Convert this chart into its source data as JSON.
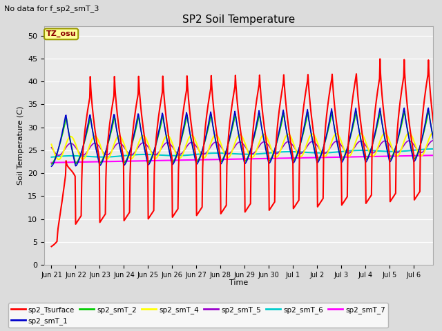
{
  "title": "SP2 Soil Temperature",
  "subtitle": "No data for f_sp2_smT_3",
  "ylabel": "Soil Temperature (C)",
  "xlabel": "Time",
  "timezone_label": "TZ_osu",
  "ylim": [
    0,
    52
  ],
  "yticks": [
    0,
    5,
    10,
    15,
    20,
    25,
    30,
    35,
    40,
    45,
    50
  ],
  "series": {
    "sp2_Tsurface": {
      "color": "#ff0000",
      "lw": 1.5,
      "zorder": 5
    },
    "sp2_smT_1": {
      "color": "#0000cc",
      "lw": 1.2,
      "zorder": 4
    },
    "sp2_smT_2": {
      "color": "#00cc00",
      "lw": 1.2,
      "zorder": 4
    },
    "sp2_smT_4": {
      "color": "#ffff00",
      "lw": 1.5,
      "zorder": 3
    },
    "sp2_smT_5": {
      "color": "#9900cc",
      "lw": 1.2,
      "zorder": 3
    },
    "sp2_smT_6": {
      "color": "#00cccc",
      "lw": 1.5,
      "zorder": 3
    },
    "sp2_smT_7": {
      "color": "#ff00ff",
      "lw": 1.5,
      "zorder": 3
    }
  },
  "x_tick_labels": [
    "Jun 21",
    "Jun 22",
    "Jun 23",
    "Jun 24",
    "Jun 25",
    "Jun 26",
    "Jun 27",
    "Jun 28",
    "Jun 29",
    "Jun 30",
    "Jul 1",
    "Jul 2",
    "Jul 3",
    "Jul 4",
    "Jul 5",
    "Jul 6"
  ],
  "bg_color": "#dcdcdc",
  "plot_bg_color": "#ebebeb",
  "grid_color": "#ffffff",
  "figsize": [
    6.4,
    4.8
  ],
  "dpi": 100
}
